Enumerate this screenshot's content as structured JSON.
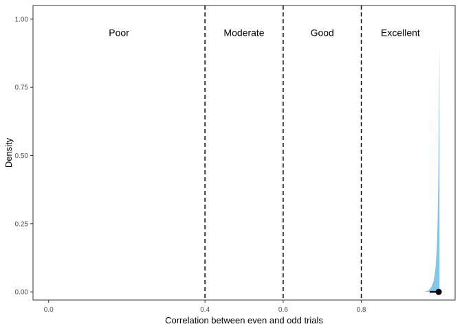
{
  "chart_data": {
    "type": "area",
    "xlabel": "Correlation between even and odd trials",
    "ylabel": "Density",
    "xlim": [
      -0.04,
      1.04
    ],
    "ylim": [
      -0.03,
      1.05
    ],
    "x_ticks": [
      {
        "value": 0.0,
        "label": "0.0"
      },
      {
        "value": 0.4,
        "label": "0.4"
      },
      {
        "value": 0.6,
        "label": "0.6"
      },
      {
        "value": 0.8,
        "label": "0.8"
      }
    ],
    "y_ticks": [
      {
        "value": 0.0,
        "label": "0.00"
      },
      {
        "value": 0.25,
        "label": "0.25"
      },
      {
        "value": 0.5,
        "label": "0.50"
      },
      {
        "value": 0.75,
        "label": "0.75"
      },
      {
        "value": 1.0,
        "label": "1.00"
      }
    ],
    "thresholds": [
      0.4,
      0.6,
      0.8
    ],
    "regions": [
      {
        "label": "Poor",
        "x": 0.18
      },
      {
        "label": "Moderate",
        "x": 0.5
      },
      {
        "label": "Good",
        "x": 0.7
      },
      {
        "label": "Excellent",
        "x": 0.9
      }
    ],
    "region_label_y": 0.95,
    "density": {
      "x": [
        0.96,
        0.97,
        0.975,
        0.98,
        0.985,
        0.99,
        0.993,
        0.995,
        0.997,
        0.998,
        0.999,
        1.0
      ],
      "y": [
        0.0,
        0.004,
        0.01,
        0.02,
        0.04,
        0.09,
        0.16,
        0.25,
        0.42,
        0.58,
        0.75,
        0.9
      ],
      "color": "#80c8e8"
    },
    "point_estimate": 0.998,
    "interval": [
      0.975,
      0.999
    ],
    "grid": false,
    "legend": "none"
  }
}
